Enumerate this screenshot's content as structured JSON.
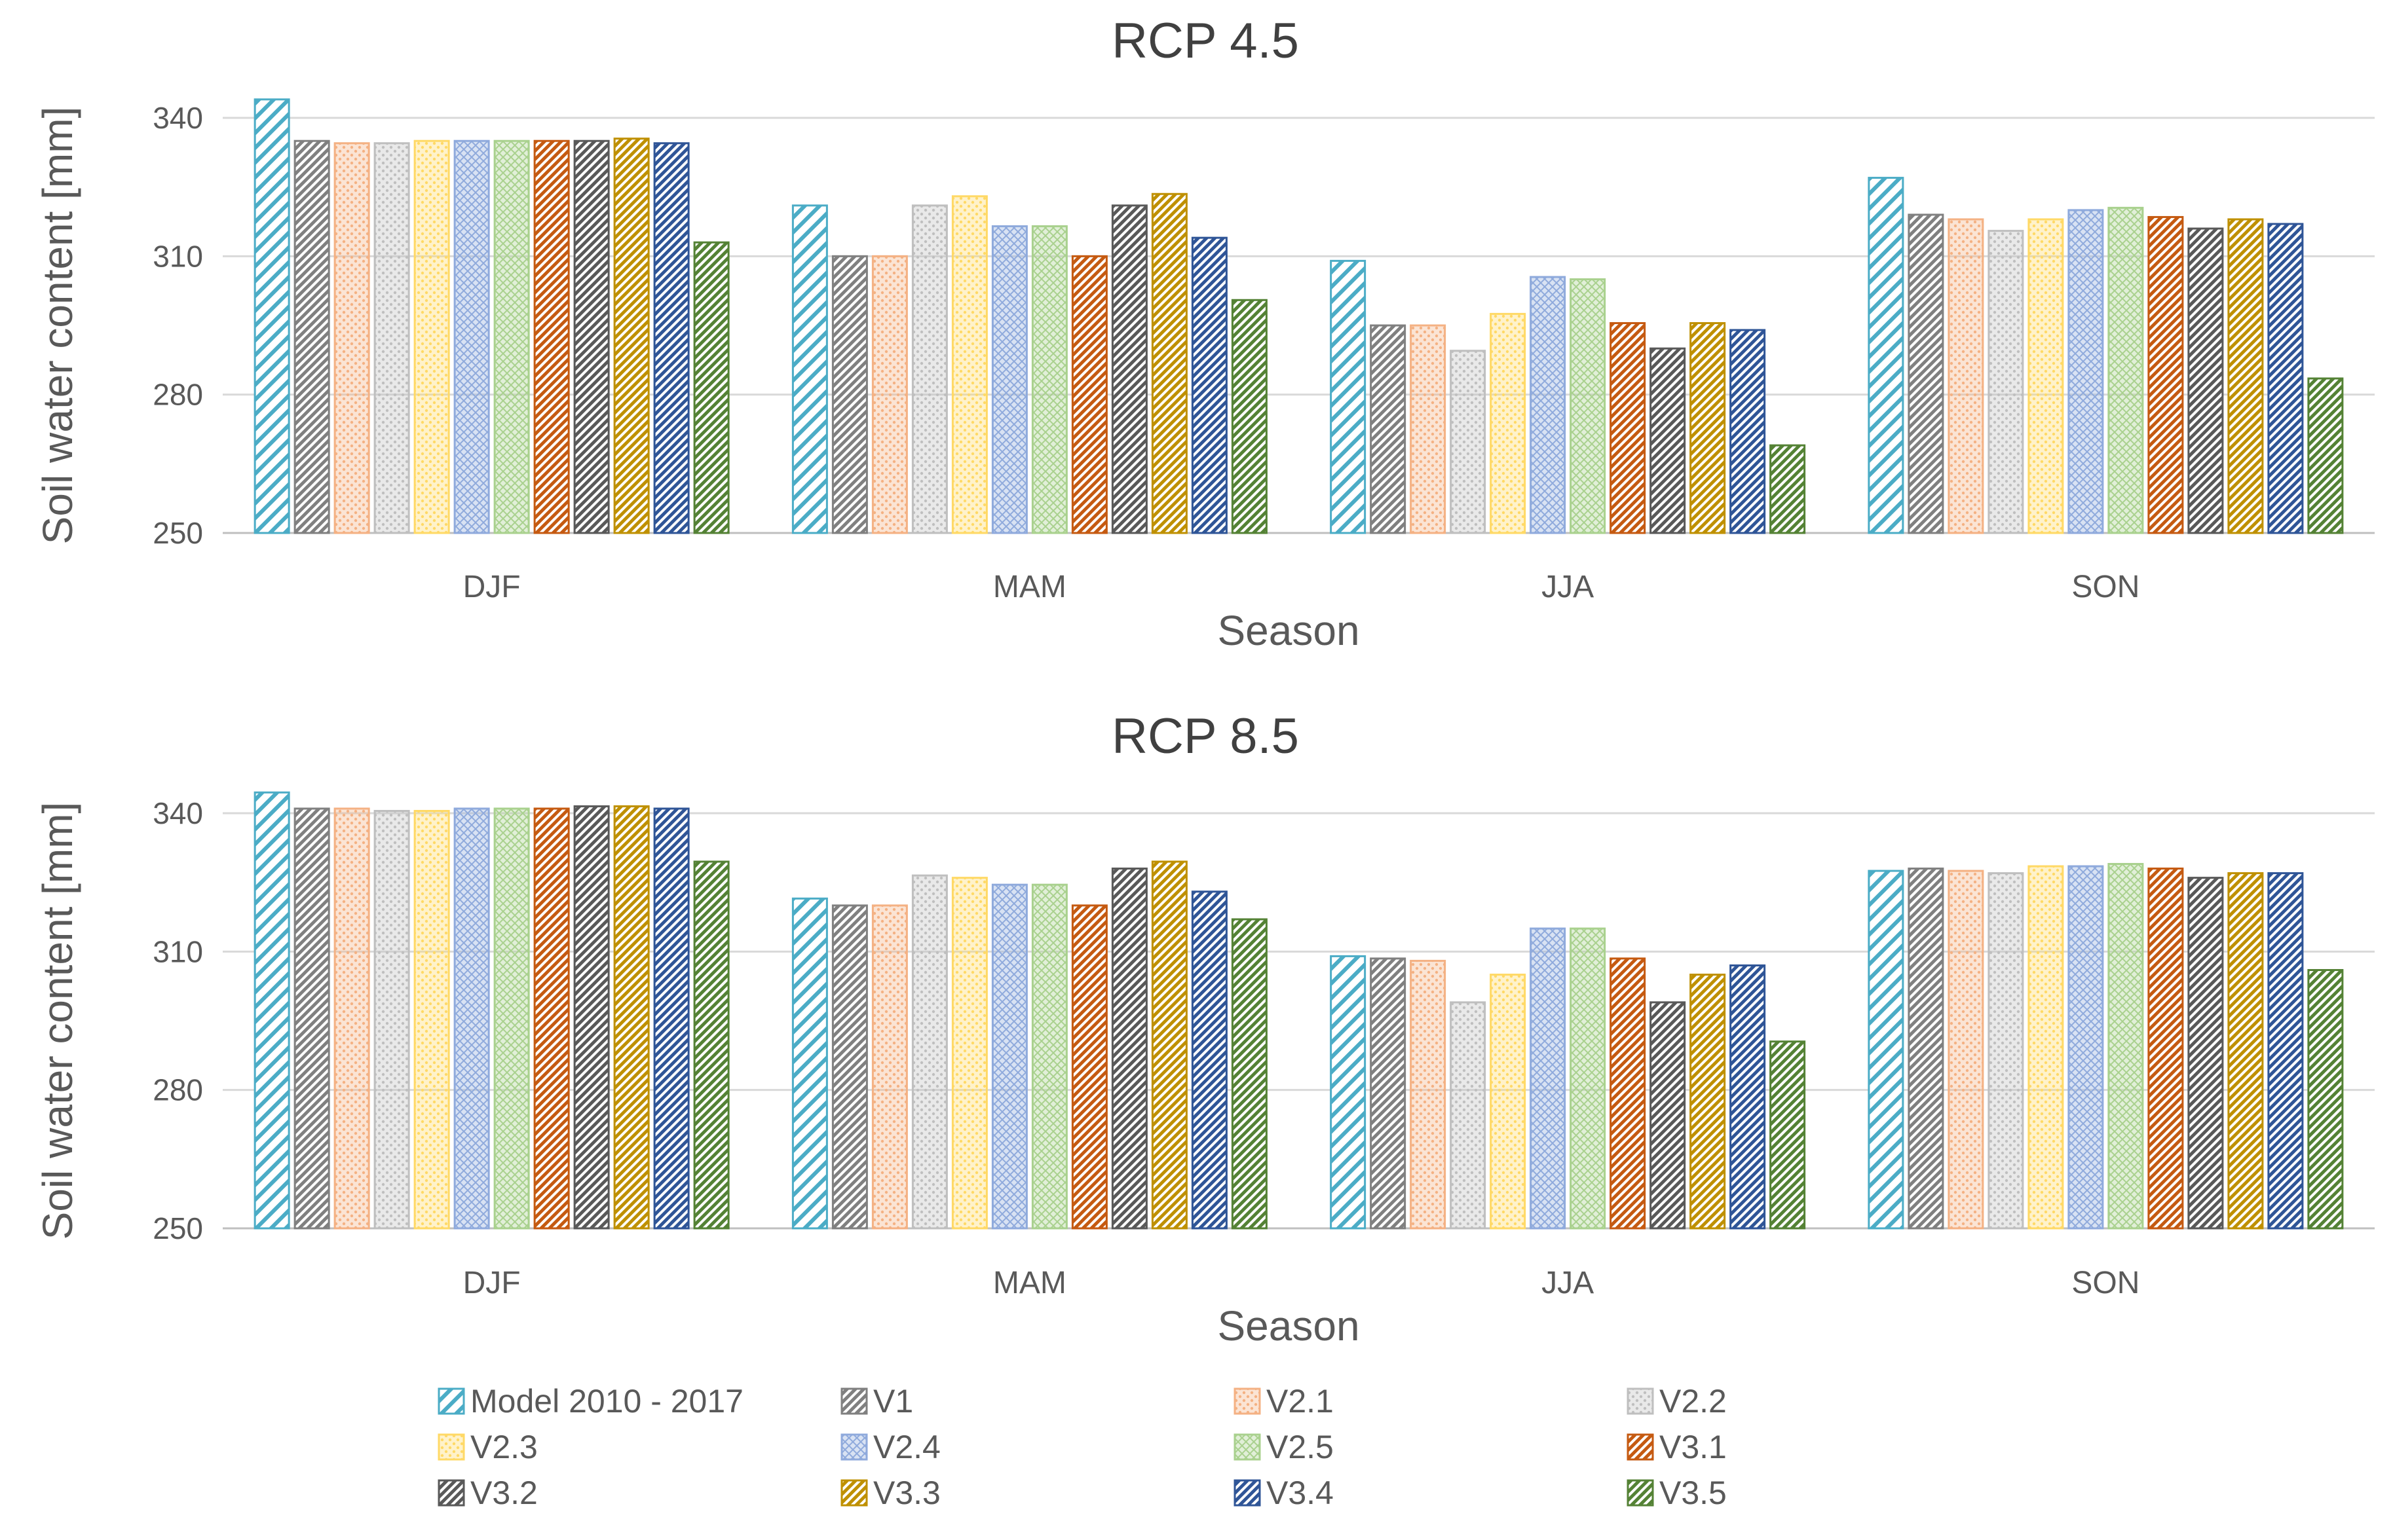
{
  "chart_data": {
    "type": "bar",
    "categories": [
      "DJF",
      "MAM",
      "JJA",
      "SON"
    ],
    "ylabel": "Soil water content [mm]",
    "xlabel": "Season",
    "ylim": [
      250,
      340
    ],
    "yticks": [
      250,
      280,
      310,
      340
    ],
    "legend_position": "bottom",
    "series_styles": [
      {
        "name": "Model 2010 - 2017",
        "color": "#4bacc6",
        "pattern": "diag-wide"
      },
      {
        "name": "V1",
        "color": "#808080",
        "pattern": "diag-dense"
      },
      {
        "name": "V2.1",
        "color": "#f4b183",
        "pattern": "dots"
      },
      {
        "name": "V2.2",
        "color": "#bfbfbf",
        "pattern": "dots"
      },
      {
        "name": "V2.3",
        "color": "#ffd966",
        "pattern": "dots"
      },
      {
        "name": "V2.4",
        "color": "#8faadc",
        "pattern": "grid"
      },
      {
        "name": "V2.5",
        "color": "#a9d18e",
        "pattern": "grid"
      },
      {
        "name": "V3.1",
        "color": "#c55a11",
        "pattern": "diag-dense"
      },
      {
        "name": "V3.2",
        "color": "#595959",
        "pattern": "diag-dense"
      },
      {
        "name": "V3.3",
        "color": "#bf9000",
        "pattern": "diag-dense"
      },
      {
        "name": "V3.4",
        "color": "#2f5597",
        "pattern": "diag-dense"
      },
      {
        "name": "V3.5",
        "color": "#548235",
        "pattern": "diag-dense"
      }
    ],
    "panels": [
      {
        "title": "RCP 4.5",
        "series": [
          {
            "name": "Model 2010 - 2017",
            "values": [
              344,
              321,
              309,
              327
            ]
          },
          {
            "name": "V1",
            "values": [
              335,
              310,
              295,
              319
            ]
          },
          {
            "name": "V2.1",
            "values": [
              334.5,
              310,
              295,
              318
            ]
          },
          {
            "name": "V2.2",
            "values": [
              334.5,
              321,
              289.5,
              315.5
            ]
          },
          {
            "name": "V2.3",
            "values": [
              335,
              323,
              297.5,
              318
            ]
          },
          {
            "name": "V2.4",
            "values": [
              335,
              316.5,
              305.5,
              320
            ]
          },
          {
            "name": "V2.5",
            "values": [
              335,
              316.5,
              305,
              320.5
            ]
          },
          {
            "name": "V3.1",
            "values": [
              335,
              310,
              295.5,
              318.5
            ]
          },
          {
            "name": "V3.2",
            "values": [
              335,
              321,
              290,
              316
            ]
          },
          {
            "name": "V3.3",
            "values": [
              335.5,
              323.5,
              295.5,
              318
            ]
          },
          {
            "name": "V3.4",
            "values": [
              334.5,
              314,
              294,
              317
            ]
          },
          {
            "name": "V3.5",
            "values": [
              313,
              300.5,
              269,
              283.5
            ]
          }
        ]
      },
      {
        "title": "RCP 8.5",
        "series": [
          {
            "name": "Model 2010 - 2017",
            "values": [
              344.5,
              321.5,
              309,
              327.5
            ]
          },
          {
            "name": "V1",
            "values": [
              341,
              320,
              308.5,
              328
            ]
          },
          {
            "name": "V2.1",
            "values": [
              341,
              320,
              308,
              327.5
            ]
          },
          {
            "name": "V2.2",
            "values": [
              340.5,
              326.5,
              299,
              327
            ]
          },
          {
            "name": "V2.3",
            "values": [
              340.5,
              326,
              305,
              328.5
            ]
          },
          {
            "name": "V2.4",
            "values": [
              341,
              324.5,
              315,
              328.5
            ]
          },
          {
            "name": "V2.5",
            "values": [
              341,
              324.5,
              315,
              329
            ]
          },
          {
            "name": "V3.1",
            "values": [
              341,
              320,
              308.5,
              328
            ]
          },
          {
            "name": "V3.2",
            "values": [
              341.5,
              328,
              299,
              326
            ]
          },
          {
            "name": "V3.3",
            "values": [
              341.5,
              329.5,
              305,
              327
            ]
          },
          {
            "name": "V3.4",
            "values": [
              341,
              323,
              307,
              327
            ]
          },
          {
            "name": "V3.5",
            "values": [
              329.5,
              317,
              290.5,
              306
            ]
          }
        ]
      }
    ]
  }
}
